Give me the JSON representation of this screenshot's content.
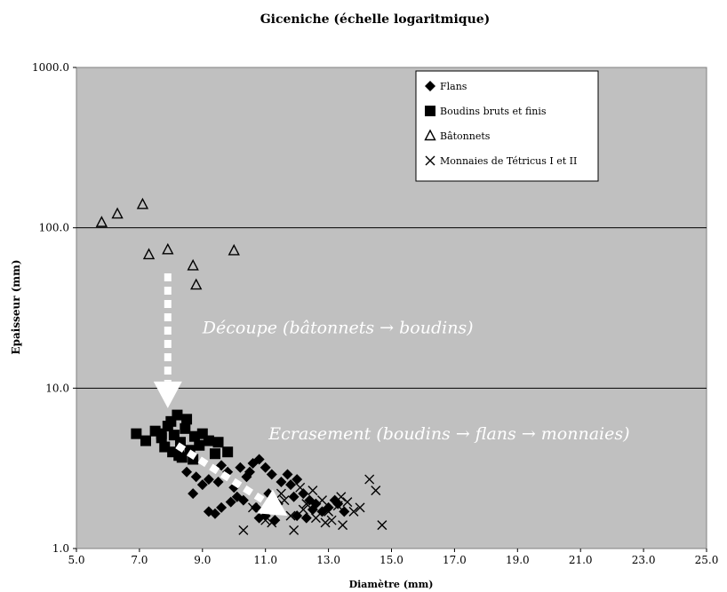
{
  "chart_data": {
    "type": "scatter",
    "title": "Giceniche (échelle logaritmique)",
    "xlabel": "Diamètre (mm)",
    "ylabel": "Epaisseur (mm)",
    "xlim": [
      5.0,
      25.0
    ],
    "ylim": [
      1.0,
      1000.0
    ],
    "yscale": "log",
    "x_ticks": [
      "5.0",
      "7.0",
      "9.0",
      "11.0",
      "13.0",
      "15.0",
      "17.0",
      "19.0",
      "21.0",
      "23.0",
      "25.0"
    ],
    "y_ticks": [
      "1.0",
      "10.0",
      "100.0",
      "1000.0"
    ],
    "grid": "horizontal major lines",
    "plot_background": "#c0c0c0",
    "legend_position": "top-right",
    "series": [
      {
        "name": "Flans",
        "marker": "diamond",
        "points": [
          [
            8.5,
            3.0
          ],
          [
            8.8,
            2.8
          ],
          [
            9.0,
            2.5
          ],
          [
            8.7,
            2.2
          ],
          [
            9.2,
            2.7
          ],
          [
            9.6,
            3.3
          ],
          [
            9.8,
            3.0
          ],
          [
            9.5,
            2.6
          ],
          [
            10.0,
            2.4
          ],
          [
            10.2,
            3.2
          ],
          [
            10.4,
            2.8
          ],
          [
            10.6,
            3.4
          ],
          [
            10.8,
            3.6
          ],
          [
            10.5,
            3.0
          ],
          [
            11.0,
            3.2
          ],
          [
            11.2,
            2.9
          ],
          [
            11.5,
            2.6
          ],
          [
            11.7,
            2.9
          ],
          [
            11.8,
            2.5
          ],
          [
            12.0,
            2.7
          ],
          [
            12.2,
            2.2
          ],
          [
            12.4,
            2.0
          ],
          [
            12.6,
            1.9
          ],
          [
            12.8,
            1.7
          ],
          [
            13.0,
            1.8
          ],
          [
            13.3,
            1.9
          ],
          [
            13.5,
            1.7
          ],
          [
            13.2,
            2.0
          ],
          [
            12.0,
            1.6
          ],
          [
            12.3,
            1.55
          ],
          [
            11.3,
            1.5
          ],
          [
            11.0,
            1.6
          ],
          [
            10.8,
            1.55
          ],
          [
            9.4,
            1.65
          ],
          [
            9.2,
            1.7
          ],
          [
            9.6,
            1.8
          ],
          [
            9.9,
            1.95
          ],
          [
            10.1,
            2.1
          ],
          [
            10.3,
            2.0
          ],
          [
            10.7,
            1.8
          ],
          [
            11.1,
            2.2
          ],
          [
            11.4,
            1.9
          ],
          [
            11.9,
            2.1
          ],
          [
            12.5,
            1.75
          ]
        ],
        "color": "#000000"
      },
      {
        "name": "Boudins bruts et finis",
        "marker": "square",
        "points": [
          [
            6.9,
            5.2
          ],
          [
            7.2,
            4.7
          ],
          [
            7.5,
            5.4
          ],
          [
            7.7,
            4.9
          ],
          [
            7.8,
            4.3
          ],
          [
            7.9,
            5.8
          ],
          [
            8.0,
            6.2
          ],
          [
            8.05,
            4.0
          ],
          [
            8.1,
            5.1
          ],
          [
            8.2,
            6.8
          ],
          [
            8.3,
            4.6
          ],
          [
            8.35,
            3.7
          ],
          [
            8.45,
            5.6
          ],
          [
            8.5,
            6.4
          ],
          [
            8.6,
            4.1
          ],
          [
            8.7,
            3.6
          ],
          [
            8.75,
            5.0
          ],
          [
            8.9,
            4.4
          ],
          [
            9.0,
            5.2
          ],
          [
            9.2,
            4.7
          ],
          [
            9.4,
            3.9
          ],
          [
            9.5,
            4.6
          ],
          [
            9.8,
            4.0
          ],
          [
            8.25,
            3.8
          ],
          [
            7.7,
            5.2
          ]
        ],
        "color": "#000000"
      },
      {
        "name": "Bâtonnets",
        "marker": "triangle-open",
        "points": [
          [
            5.8,
            108.0
          ],
          [
            6.3,
            122.0
          ],
          [
            7.1,
            140.0
          ],
          [
            7.3,
            68.0
          ],
          [
            7.9,
            73.0
          ],
          [
            8.7,
            58.0
          ],
          [
            8.8,
            44.0
          ],
          [
            10.0,
            72.0
          ]
        ],
        "color": "#000000"
      },
      {
        "name": "Monnaies de Tétricus I et II",
        "marker": "x",
        "points": [
          [
            10.3,
            1.3
          ],
          [
            10.6,
            1.8
          ],
          [
            11.0,
            1.5
          ],
          [
            11.2,
            1.45
          ],
          [
            11.5,
            2.2
          ],
          [
            11.8,
            1.6
          ],
          [
            11.9,
            1.3
          ],
          [
            12.1,
            2.4
          ],
          [
            12.3,
            1.9
          ],
          [
            12.5,
            2.3
          ],
          [
            12.6,
            1.55
          ],
          [
            12.8,
            2.0
          ],
          [
            13.0,
            1.7
          ],
          [
            13.1,
            1.5
          ],
          [
            13.3,
            1.85
          ],
          [
            13.4,
            2.1
          ],
          [
            13.6,
            1.95
          ],
          [
            13.8,
            1.7
          ],
          [
            14.0,
            1.8
          ],
          [
            14.3,
            2.7
          ],
          [
            14.5,
            2.3
          ],
          [
            14.7,
            1.4
          ],
          [
            12.9,
            1.45
          ],
          [
            12.2,
            1.75
          ],
          [
            11.6,
            2.0
          ],
          [
            13.45,
            1.4
          ]
        ],
        "color": "#000000"
      }
    ],
    "annotations": [
      {
        "text": "Découpe (bâtonnets → boudins)",
        "x": 9.0,
        "y": 22.0
      },
      {
        "text": "Ecrasement (boudins → flans → monnaies)",
        "x": 11.1,
        "y": 4.8
      }
    ],
    "arrows": [
      {
        "style": "dashed-white",
        "from": [
          7.9,
          52.0
        ],
        "to": [
          7.9,
          7.5
        ]
      },
      {
        "style": "dashed-white",
        "from": [
          8.2,
          4.4
        ],
        "to": [
          11.7,
          1.6
        ]
      }
    ]
  }
}
